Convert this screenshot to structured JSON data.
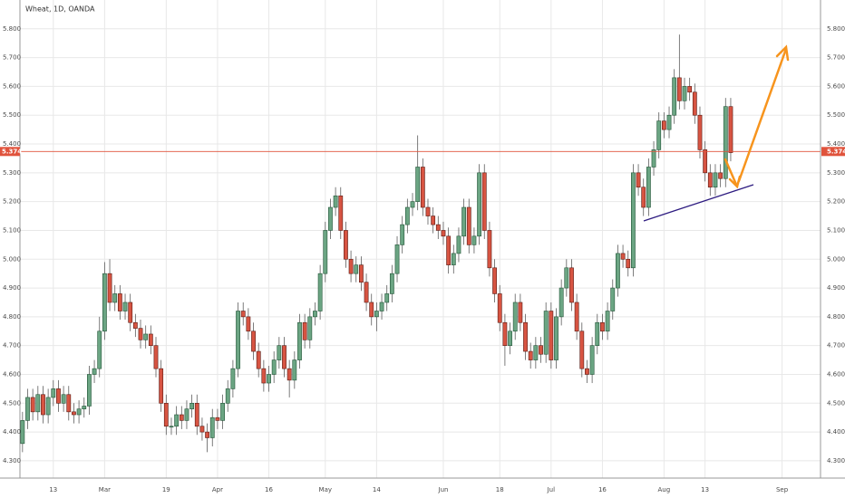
{
  "chart_data": {
    "type": "candlestick",
    "title": "Wheat, 1D, OANDA",
    "categories": [
      null,
      null,
      null,
      null,
      null,
      null,
      "13",
      null,
      null,
      null,
      null,
      null,
      null,
      null,
      null,
      null,
      "Mar",
      null,
      null,
      null,
      null,
      null,
      null,
      null,
      null,
      null,
      null,
      null,
      "19",
      null,
      null,
      null,
      null,
      null,
      null,
      null,
      null,
      null,
      "Apr",
      null,
      null,
      null,
      null,
      null,
      null,
      null,
      null,
      null,
      "16",
      null,
      null,
      null,
      null,
      null,
      null,
      null,
      null,
      null,
      null,
      "May",
      null,
      null,
      null,
      null,
      null,
      null,
      null,
      null,
      null,
      "14",
      null,
      null,
      null,
      null,
      null,
      null,
      null,
      null,
      null,
      null,
      null,
      null,
      "Jun",
      null,
      null,
      null,
      null,
      null,
      null,
      null,
      null,
      null,
      null,
      "18",
      null,
      null,
      null,
      null,
      null,
      null,
      null,
      null,
      null,
      "Jul",
      null,
      null,
      null,
      null,
      null,
      null,
      null,
      null,
      null,
      "16",
      null,
      null,
      null,
      null,
      null,
      null,
      null,
      null,
      null,
      null,
      null,
      "Aug",
      null,
      null,
      null,
      null,
      null,
      null,
      null,
      "13",
      null,
      null,
      null,
      null,
      null,
      null,
      null,
      null,
      null,
      null,
      null,
      null,
      null,
      null,
      "Sep",
      null,
      null,
      null,
      null,
      null,
      null,
      null
    ],
    "open": [
      4.36,
      4.44,
      4.52,
      4.47,
      4.53,
      4.46,
      4.52,
      4.55,
      4.5,
      4.53,
      4.47,
      4.46,
      4.48,
      4.49,
      4.6,
      4.62,
      4.75,
      4.95,
      4.85,
      4.88,
      4.82,
      4.85,
      4.78,
      4.76,
      4.72,
      4.74,
      4.7,
      4.62,
      4.5,
      4.42,
      4.42,
      4.46,
      4.44,
      4.48,
      4.5,
      4.42,
      4.4,
      4.38,
      4.45,
      4.44,
      4.5,
      4.55,
      4.62,
      4.82,
      4.8,
      4.75,
      4.68,
      4.62,
      4.57,
      4.6,
      4.65,
      4.7,
      4.62,
      4.58,
      4.65,
      4.78,
      4.72,
      4.8,
      4.82,
      4.95,
      5.1,
      5.18,
      5.22,
      5.1,
      5.0,
      4.95,
      4.98,
      4.92,
      4.85,
      4.8,
      4.82,
      4.85,
      4.88,
      4.95,
      5.05,
      5.12,
      5.18,
      5.2,
      5.32,
      5.18,
      5.15,
      5.12,
      5.1,
      5.08,
      4.98,
      5.02,
      5.08,
      5.18,
      5.05,
      5.08,
      5.3,
      5.1,
      4.97,
      4.88,
      4.78,
      4.7,
      4.75,
      4.85,
      4.78,
      4.68,
      4.65,
      4.7,
      4.67,
      4.82,
      4.65,
      4.8,
      4.9,
      4.97,
      4.85,
      4.75,
      4.62,
      4.6,
      4.7,
      4.78,
      4.75,
      4.82,
      4.9,
      5.02,
      5.0,
      4.97,
      5.3,
      5.25,
      5.18,
      5.32,
      5.38,
      5.48,
      5.45,
      5.5,
      5.63,
      5.55,
      5.6,
      5.58,
      5.5,
      5.38,
      5.3,
      5.25,
      5.3,
      5.28,
      5.53,
      null,
      null,
      null,
      null,
      null,
      null,
      null,
      null,
      null,
      null,
      null,
      null,
      null,
      null,
      null,
      null,
      null
    ],
    "high": [
      4.47,
      4.55,
      4.55,
      4.56,
      4.56,
      4.55,
      4.58,
      4.58,
      4.56,
      4.56,
      4.5,
      4.51,
      4.52,
      4.63,
      4.65,
      4.8,
      4.99,
      5.0,
      4.91,
      4.91,
      4.88,
      4.88,
      4.81,
      4.79,
      4.77,
      4.77,
      4.73,
      4.65,
      4.53,
      4.45,
      4.49,
      4.49,
      4.51,
      4.53,
      4.53,
      4.45,
      4.43,
      4.48,
      4.48,
      4.53,
      4.58,
      4.65,
      4.85,
      4.85,
      4.83,
      4.78,
      4.71,
      4.65,
      4.63,
      4.68,
      4.73,
      4.73,
      4.65,
      4.68,
      4.81,
      4.81,
      4.83,
      4.85,
      4.98,
      5.13,
      5.21,
      5.25,
      5.25,
      5.13,
      5.03,
      5.01,
      5.01,
      4.95,
      4.88,
      4.85,
      4.88,
      4.91,
      4.98,
      5.08,
      5.15,
      5.21,
      5.23,
      5.43,
      5.35,
      5.21,
      5.18,
      5.15,
      5.13,
      5.11,
      5.05,
      5.11,
      5.21,
      5.21,
      5.11,
      5.33,
      5.33,
      5.13,
      5.0,
      4.91,
      4.81,
      4.78,
      4.88,
      4.88,
      4.81,
      4.71,
      4.73,
      4.73,
      4.85,
      4.85,
      4.83,
      4.93,
      5.0,
      5.0,
      4.88,
      4.78,
      4.65,
      4.73,
      4.81,
      4.81,
      4.85,
      4.93,
      5.05,
      5.05,
      5.03,
      5.33,
      5.33,
      5.28,
      5.35,
      5.41,
      5.51,
      5.51,
      5.53,
      5.66,
      5.78,
      5.63,
      5.63,
      5.61,
      5.53,
      5.41,
      5.33,
      5.33,
      5.33,
      5.56,
      5.56,
      null,
      null,
      null,
      null,
      null,
      null,
      null,
      null,
      null,
      null,
      null,
      null,
      null,
      null,
      null,
      null,
      null
    ],
    "low": [
      4.33,
      4.41,
      4.44,
      4.44,
      4.43,
      4.43,
      4.49,
      4.47,
      4.47,
      4.44,
      4.43,
      4.43,
      4.45,
      4.46,
      4.57,
      4.59,
      4.72,
      4.82,
      4.82,
      4.79,
      4.79,
      4.75,
      4.73,
      4.69,
      4.69,
      4.67,
      4.59,
      4.47,
      4.39,
      4.39,
      4.39,
      4.41,
      4.41,
      4.45,
      4.39,
      4.37,
      4.33,
      4.35,
      4.41,
      4.41,
      4.47,
      4.52,
      4.59,
      4.77,
      4.72,
      4.65,
      4.59,
      4.54,
      4.54,
      4.57,
      4.62,
      4.59,
      4.52,
      4.55,
      4.62,
      4.69,
      4.69,
      4.77,
      4.79,
      4.92,
      5.07,
      5.15,
      5.07,
      4.97,
      4.92,
      4.92,
      4.89,
      4.82,
      4.77,
      4.75,
      4.79,
      4.82,
      4.85,
      4.92,
      5.02,
      5.09,
      5.15,
      5.17,
      5.15,
      5.12,
      5.09,
      5.07,
      5.05,
      4.95,
      4.95,
      4.99,
      5.05,
      5.02,
      5.02,
      5.05,
      5.07,
      4.94,
      4.85,
      4.75,
      4.63,
      4.67,
      4.72,
      4.75,
      4.65,
      4.62,
      4.62,
      4.64,
      4.64,
      4.62,
      4.62,
      4.77,
      4.87,
      4.82,
      4.72,
      4.59,
      4.57,
      4.57,
      4.67,
      4.72,
      4.72,
      4.79,
      4.87,
      4.97,
      4.94,
      4.94,
      5.22,
      5.15,
      5.15,
      5.29,
      5.35,
      5.42,
      5.42,
      5.47,
      5.52,
      5.52,
      5.55,
      5.47,
      5.35,
      5.27,
      5.22,
      5.22,
      5.25,
      5.25,
      5.34,
      null,
      null,
      null,
      null,
      null,
      null,
      null,
      null,
      null,
      null,
      null,
      null,
      null,
      null,
      null,
      null,
      null
    ],
    "close": [
      4.44,
      4.52,
      4.47,
      4.53,
      4.46,
      4.52,
      4.55,
      4.5,
      4.53,
      4.47,
      4.46,
      4.48,
      4.49,
      4.6,
      4.62,
      4.75,
      4.95,
      4.85,
      4.88,
      4.82,
      4.85,
      4.78,
      4.76,
      4.72,
      4.74,
      4.7,
      4.62,
      4.5,
      4.42,
      4.42,
      4.46,
      4.44,
      4.48,
      4.5,
      4.42,
      4.4,
      4.38,
      4.45,
      4.44,
      4.5,
      4.55,
      4.62,
      4.82,
      4.8,
      4.75,
      4.68,
      4.62,
      4.57,
      4.6,
      4.65,
      4.7,
      4.62,
      4.58,
      4.65,
      4.78,
      4.72,
      4.8,
      4.82,
      4.95,
      5.1,
      5.18,
      5.22,
      5.1,
      5.0,
      4.95,
      4.98,
      4.92,
      4.85,
      4.8,
      4.82,
      4.85,
      4.88,
      4.95,
      5.05,
      5.12,
      5.18,
      5.2,
      5.32,
      5.18,
      5.15,
      5.12,
      5.1,
      5.08,
      4.98,
      5.02,
      5.08,
      5.18,
      5.05,
      5.08,
      5.3,
      5.1,
      4.97,
      4.88,
      4.78,
      4.7,
      4.75,
      4.85,
      4.78,
      4.68,
      4.65,
      4.7,
      4.67,
      4.82,
      4.65,
      4.8,
      4.9,
      4.97,
      4.85,
      4.75,
      4.62,
      4.6,
      4.7,
      4.78,
      4.75,
      4.82,
      4.9,
      5.02,
      5.0,
      4.97,
      5.3,
      5.25,
      5.18,
      5.32,
      5.38,
      5.48,
      5.45,
      5.5,
      5.63,
      5.55,
      5.6,
      5.58,
      5.5,
      5.38,
      5.3,
      5.25,
      5.3,
      5.28,
      5.53,
      5.37,
      null,
      null,
      null,
      null,
      null,
      null,
      null,
      null,
      null,
      null,
      null,
      null,
      null,
      null,
      null,
      null,
      null
    ],
    "up_color": "#6ba583",
    "down_color": "#d75442",
    "last_price": 5.374,
    "last_price_color": "#e0533c",
    "ylim": [
      4.24,
      5.9
    ],
    "yticks": [
      {
        "value": 4.3,
        "label": "4.300"
      },
      {
        "value": 4.4,
        "label": "4.400"
      },
      {
        "value": 4.5,
        "label": "4.500"
      },
      {
        "value": 4.6,
        "label": "4.600"
      },
      {
        "value": 4.7,
        "label": "4.700"
      },
      {
        "value": 4.8,
        "label": "4.800"
      },
      {
        "value": 4.9,
        "label": "4.900"
      },
      {
        "value": 5.0,
        "label": "5.000"
      },
      {
        "value": 5.1,
        "label": "5.100"
      },
      {
        "value": 5.2,
        "label": "5.200"
      },
      {
        "value": 5.3,
        "label": "5.300"
      },
      {
        "value": 5.4,
        "label": "5.400"
      },
      {
        "value": 5.5,
        "label": "5.500"
      },
      {
        "value": 5.6,
        "label": "5.600"
      },
      {
        "value": 5.7,
        "label": "5.700"
      },
      {
        "value": 5.8,
        "label": "5.800"
      }
    ],
    "grid": true
  }
}
